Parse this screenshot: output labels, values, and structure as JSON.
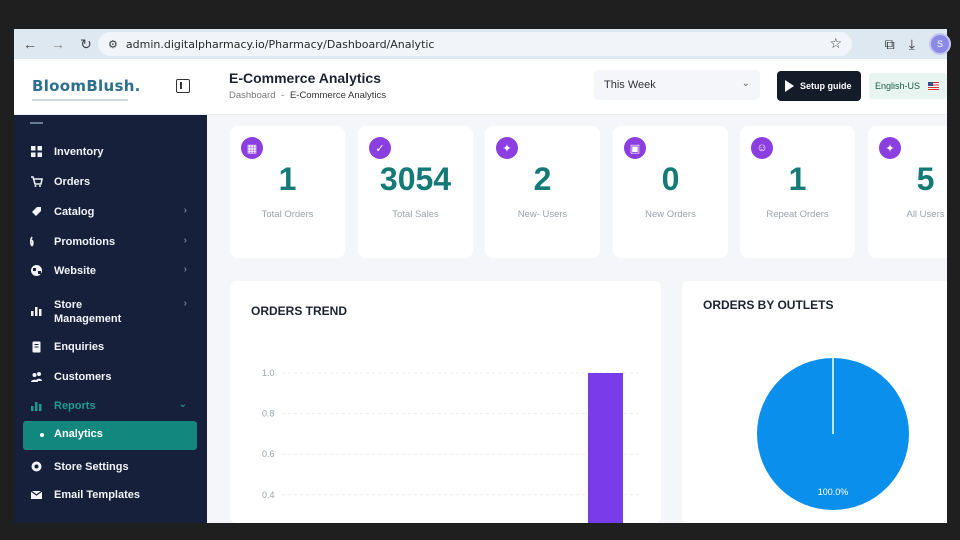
{
  "browser": {
    "url": "admin.digitalpharmacy.io/Pharmacy/Dashboard/Analytic",
    "avatar_initial": "S"
  },
  "header": {
    "logo": "BloomBlush.",
    "title": "E-Commerce Analytics",
    "breadcrumb_root": "Dashboard",
    "breadcrumb_sep": "-",
    "breadcrumb_current": "E-Commerce Analytics",
    "period": "This Week",
    "setup_label": "Setup guide",
    "language": "English-US"
  },
  "sidebar": {
    "items": [
      {
        "label": "Inventory",
        "icon": "grid-icon"
      },
      {
        "label": "Orders",
        "icon": "cart-icon"
      },
      {
        "label": "Catalog",
        "icon": "tag-icon",
        "chevron": true
      },
      {
        "label": "Promotions",
        "icon": "signal-icon",
        "chevron": true
      },
      {
        "label": "Website",
        "icon": "globe-icon",
        "chevron": true
      },
      {
        "label": "Store Management",
        "icon": "bar-icon",
        "chevron": true
      },
      {
        "label": "Enquiries",
        "icon": "clipboard-icon"
      },
      {
        "label": "Customers",
        "icon": "users-icon"
      },
      {
        "label": "Reports",
        "icon": "chart-icon",
        "chevron": true,
        "active": true
      },
      {
        "label": "Store Settings",
        "icon": "gear-icon"
      },
      {
        "label": "Email Templates",
        "icon": "mail-icon"
      }
    ],
    "active_sub": "Analytics"
  },
  "stats": [
    {
      "value": "1",
      "label": "Total Orders",
      "icon": "calendar-icon"
    },
    {
      "value": "3054",
      "label": "Total Sales",
      "icon": "check-circle-icon"
    },
    {
      "value": "2",
      "label": "New- Users",
      "icon": "ticket-icon"
    },
    {
      "value": "0",
      "label": "New Orders",
      "icon": "calendar-check-icon"
    },
    {
      "value": "1",
      "label": "Repeat Orders",
      "icon": "user-icon"
    },
    {
      "value": "5",
      "label": "All Users",
      "icon": "ticket-icon"
    }
  ],
  "panels": {
    "orders_trend_title": "ORDERS TREND",
    "outlets_title": "ORDERS BY OUTLETS"
  },
  "chart_data": [
    {
      "type": "bar",
      "title": "ORDERS TREND",
      "y_ticks": [
        "1.0",
        "0.8",
        "0.6",
        "0.4"
      ],
      "ylim": [
        0,
        1.0
      ],
      "values": [
        1
      ],
      "color": "#7a3ce8",
      "grid": true
    },
    {
      "type": "pie",
      "title": "ORDERS BY OUTLETS",
      "slices": [
        {
          "value": 100,
          "label": "100.0%"
        }
      ],
      "color": "#0a8fec"
    }
  ],
  "colors": {
    "accent": "#12877d",
    "stat_value": "#147a78",
    "icon_bg": "#8b3fe0",
    "sidebar": "#16203a"
  }
}
